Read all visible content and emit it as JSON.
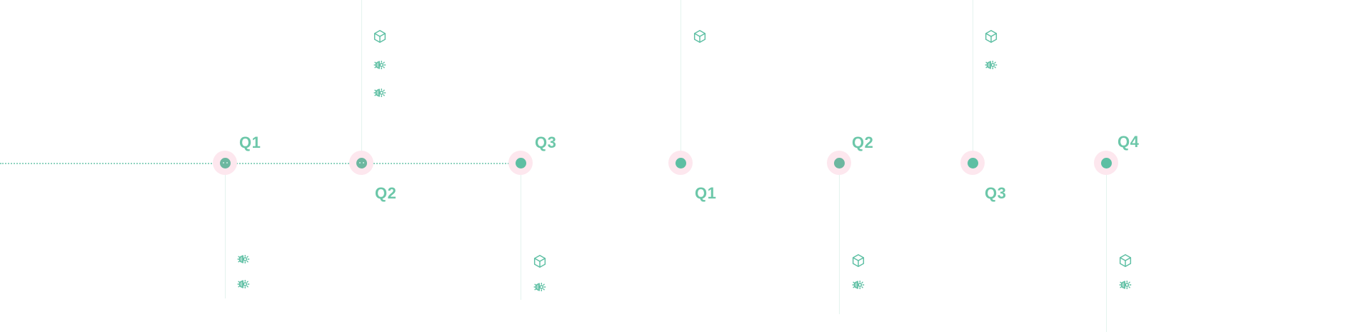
{
  "milestones": [
    {
      "quarter": "Q1",
      "side": "up",
      "icons": [
        "gear-icon",
        "gear-icon"
      ]
    },
    {
      "quarter": "Q2",
      "side": "down",
      "icons": [
        "box-icon",
        "gear-icon",
        "gear-icon"
      ]
    },
    {
      "quarter": "Q3",
      "side": "up",
      "icons": [
        "box-icon",
        "gear-icon"
      ]
    },
    {
      "quarter": "Q1",
      "side": "down",
      "icons": [
        "box-icon"
      ]
    },
    {
      "quarter": "Q2",
      "side": "up",
      "icons": [
        "box-icon",
        "gear-icon"
      ]
    },
    {
      "quarter": "Q3",
      "side": "down",
      "icons": [
        "box-icon",
        "gear-icon"
      ]
    },
    {
      "quarter": "Q4",
      "side": "up",
      "icons": [
        "box-icon",
        "gear-icon"
      ]
    }
  ],
  "colors": {
    "accent": "#5dbfa3",
    "label": "#6cc7a9",
    "halo": "#fde7ee",
    "line": "#8fd3bf"
  }
}
